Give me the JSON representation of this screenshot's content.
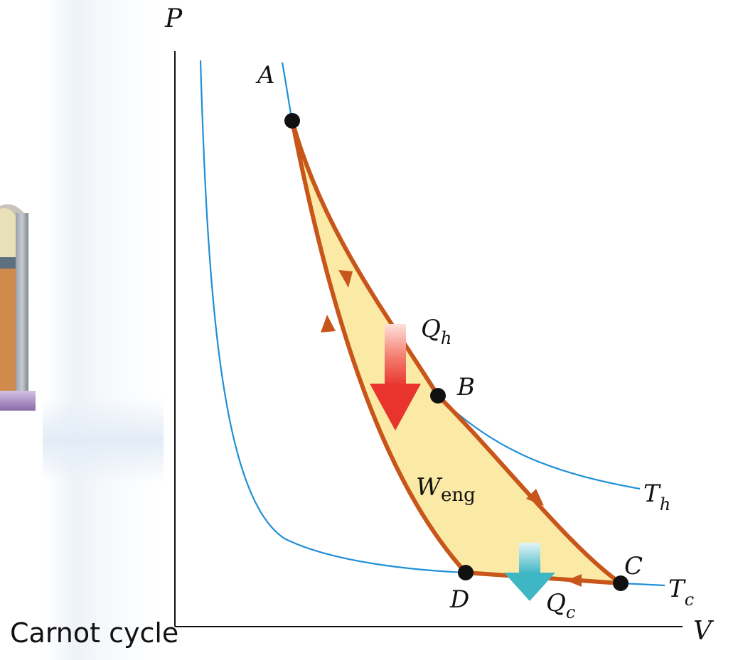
{
  "caption": "Carnot cycle",
  "axes": {
    "y_label": "P",
    "x_label": "V"
  },
  "points": [
    {
      "id": "A",
      "label": "A"
    },
    {
      "id": "B",
      "label": "B"
    },
    {
      "id": "C",
      "label": "C"
    },
    {
      "id": "D",
      "label": "D"
    }
  ],
  "isotherms": [
    {
      "id": "hot",
      "label": "T",
      "subscript": "h"
    },
    {
      "id": "cold",
      "label": "T",
      "subscript": "c"
    }
  ],
  "heat": {
    "hot": {
      "label": "Q",
      "subscript": "h"
    },
    "cold": {
      "label": "Q",
      "subscript": "c"
    }
  },
  "work": {
    "label": "W",
    "subscript": "eng"
  },
  "colors": {
    "cycle": "#c8561a",
    "isotherm": "#1f8fd6",
    "fill": "#fbeaa6",
    "hot_arrow": "#e8342c",
    "cold_arrow": "#3fb6c4",
    "point": "#111111",
    "axis": "#111111"
  }
}
